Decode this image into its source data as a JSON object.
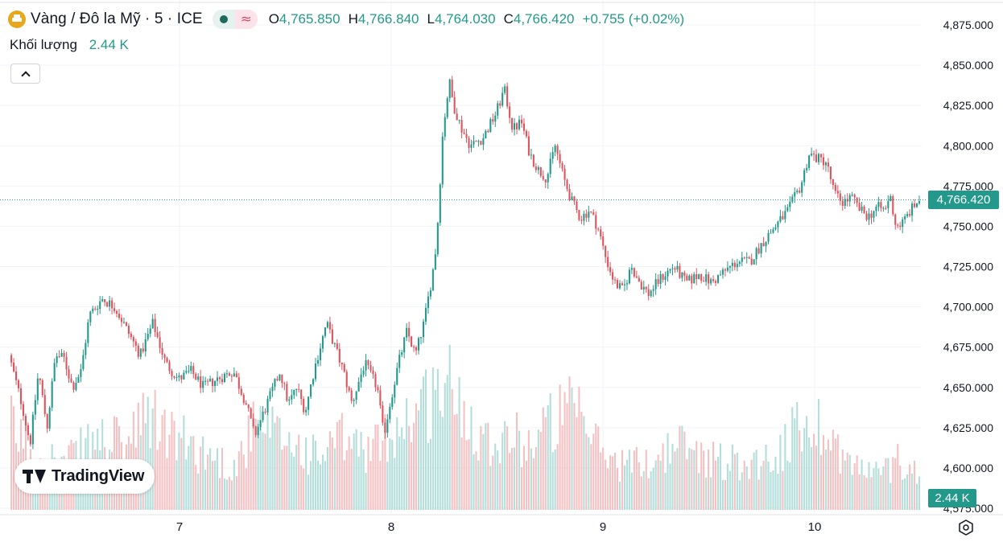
{
  "header": {
    "symbol_title": "Vàng / Đô la Mỹ · 5 · ICE",
    "symbol_icon": "gold-bar-icon",
    "status_icon": "market-open-dot-icon",
    "wave_icon": "wave-icon",
    "ohlc": {
      "o_label": "O",
      "o_value": "4,765.850",
      "h_label": "H",
      "h_value": "4,766.840",
      "l_label": "L",
      "l_value": "4,764.030",
      "c_label": "C",
      "c_value": "4,766.420",
      "change": "+0.755 (+0.02%)"
    }
  },
  "volume_legend": {
    "label": "Khối lượng",
    "value": "2.44 K"
  },
  "collapse_icon": "chevron-up-icon",
  "price_tag": "4,766.420",
  "volume_tag": "2.44 K",
  "brand": {
    "text": "TradingView",
    "icon": "tradingview-logo-icon"
  },
  "settings_icon": "hexagon-settings-icon",
  "colors": {
    "up": "#22998a",
    "down": "#e0535c",
    "up_volume": "#a6d8d3",
    "down_volume": "#f2b6b9",
    "grid": "#f0f3fa",
    "axis_text": "#131722"
  },
  "chart_data": {
    "type": "candlestick",
    "title": "Vàng / Đô la Mỹ · 5 · ICE",
    "interval": "5",
    "last_price": 4766.42,
    "grid": true,
    "price_axis": {
      "position": "right",
      "range": [
        4575,
        4885
      ],
      "ticks": [
        "4,875.000",
        "4,850.000",
        "4,825.000",
        "4,800.000",
        "4,775.000",
        "4,750.000",
        "4,725.000",
        "4,700.000",
        "4,675.000",
        "4,650.000",
        "4,625.000",
        "4,600.000",
        "4,575.000"
      ]
    },
    "time_axis": {
      "range_days": [
        6.2,
        10.55
      ],
      "ticks": [
        {
          "label": "7",
          "day": 7
        },
        {
          "label": "8",
          "day": 8
        },
        {
          "label": "9",
          "day": 9
        },
        {
          "label": "10",
          "day": 10
        }
      ]
    },
    "price_path": [
      [
        6.2,
        4670
      ],
      [
        6.26,
        4640
      ],
      [
        6.3,
        4615
      ],
      [
        6.34,
        4660
      ],
      [
        6.38,
        4625
      ],
      [
        6.42,
        4670
      ],
      [
        6.46,
        4668
      ],
      [
        6.5,
        4650
      ],
      [
        6.54,
        4660
      ],
      [
        6.58,
        4695
      ],
      [
        6.64,
        4705
      ],
      [
        6.7,
        4700
      ],
      [
        6.76,
        4685
      ],
      [
        6.82,
        4670
      ],
      [
        6.88,
        4690
      ],
      [
        6.94,
        4665
      ],
      [
        7.0,
        4655
      ],
      [
        7.06,
        4660
      ],
      [
        7.12,
        4650
      ],
      [
        7.18,
        4655
      ],
      [
        7.26,
        4660
      ],
      [
        7.32,
        4640
      ],
      [
        7.36,
        4620
      ],
      [
        7.42,
        4640
      ],
      [
        7.48,
        4660
      ],
      [
        7.52,
        4640
      ],
      [
        7.56,
        4650
      ],
      [
        7.6,
        4635
      ],
      [
        7.64,
        4660
      ],
      [
        7.7,
        4690
      ],
      [
        7.74,
        4675
      ],
      [
        7.78,
        4660
      ],
      [
        7.82,
        4640
      ],
      [
        7.88,
        4665
      ],
      [
        7.94,
        4650
      ],
      [
        7.97,
        4620
      ],
      [
        8.0,
        4640
      ],
      [
        8.04,
        4665
      ],
      [
        8.08,
        4685
      ],
      [
        8.12,
        4670
      ],
      [
        8.16,
        4690
      ],
      [
        8.2,
        4720
      ],
      [
        8.22,
        4740
      ],
      [
        8.25,
        4810
      ],
      [
        8.28,
        4840
      ],
      [
        8.3,
        4825
      ],
      [
        8.34,
        4810
      ],
      [
        8.38,
        4800
      ],
      [
        8.44,
        4805
      ],
      [
        8.5,
        4820
      ],
      [
        8.54,
        4835
      ],
      [
        8.58,
        4810
      ],
      [
        8.62,
        4815
      ],
      [
        8.66,
        4795
      ],
      [
        8.7,
        4785
      ],
      [
        8.74,
        4780
      ],
      [
        8.78,
        4800
      ],
      [
        8.82,
        4780
      ],
      [
        8.86,
        4765
      ],
      [
        8.9,
        4755
      ],
      [
        8.94,
        4760
      ],
      [
        8.98,
        4750
      ],
      [
        9.02,
        4730
      ],
      [
        9.06,
        4715
      ],
      [
        9.1,
        4710
      ],
      [
        9.14,
        4725
      ],
      [
        9.18,
        4715
      ],
      [
        9.22,
        4708
      ],
      [
        9.28,
        4718
      ],
      [
        9.34,
        4725
      ],
      [
        9.4,
        4715
      ],
      [
        9.46,
        4720
      ],
      [
        9.52,
        4715
      ],
      [
        9.58,
        4722
      ],
      [
        9.64,
        4728
      ],
      [
        9.7,
        4728
      ],
      [
        9.76,
        4740
      ],
      [
        9.82,
        4750
      ],
      [
        9.88,
        4760
      ],
      [
        9.94,
        4775
      ],
      [
        9.98,
        4795
      ],
      [
        10.02,
        4792
      ],
      [
        10.06,
        4790
      ],
      [
        10.1,
        4770
      ],
      [
        10.14,
        4765
      ],
      [
        10.18,
        4768
      ],
      [
        10.22,
        4760
      ],
      [
        10.26,
        4756
      ],
      [
        10.3,
        4762
      ],
      [
        10.34,
        4760
      ],
      [
        10.36,
        4770
      ],
      [
        10.39,
        4750
      ],
      [
        10.42,
        4752
      ],
      [
        10.46,
        4760
      ],
      [
        10.5,
        4766.42
      ]
    ],
    "volume_path": [
      [
        6.2,
        0.35
      ],
      [
        6.3,
        0.25
      ],
      [
        6.45,
        0.2
      ],
      [
        6.6,
        0.3
      ],
      [
        6.75,
        0.28
      ],
      [
        6.85,
        0.4
      ],
      [
        6.95,
        0.32
      ],
      [
        7.1,
        0.25
      ],
      [
        7.25,
        0.18
      ],
      [
        7.35,
        0.35
      ],
      [
        7.5,
        0.3
      ],
      [
        7.65,
        0.22
      ],
      [
        7.75,
        0.3
      ],
      [
        7.9,
        0.25
      ],
      [
        8.05,
        0.38
      ],
      [
        8.15,
        0.45
      ],
      [
        8.25,
        0.55
      ],
      [
        8.35,
        0.42
      ],
      [
        8.45,
        0.3
      ],
      [
        8.55,
        0.32
      ],
      [
        8.65,
        0.28
      ],
      [
        8.75,
        0.38
      ],
      [
        8.85,
        0.42
      ],
      [
        8.95,
        0.3
      ],
      [
        9.05,
        0.2
      ],
      [
        9.2,
        0.2
      ],
      [
        9.35,
        0.28
      ],
      [
        9.5,
        0.22
      ],
      [
        9.65,
        0.2
      ],
      [
        9.8,
        0.22
      ],
      [
        9.95,
        0.38
      ],
      [
        10.05,
        0.35
      ],
      [
        10.15,
        0.2
      ],
      [
        10.3,
        0.15
      ],
      [
        10.4,
        0.22
      ],
      [
        10.5,
        0.14
      ]
    ]
  }
}
